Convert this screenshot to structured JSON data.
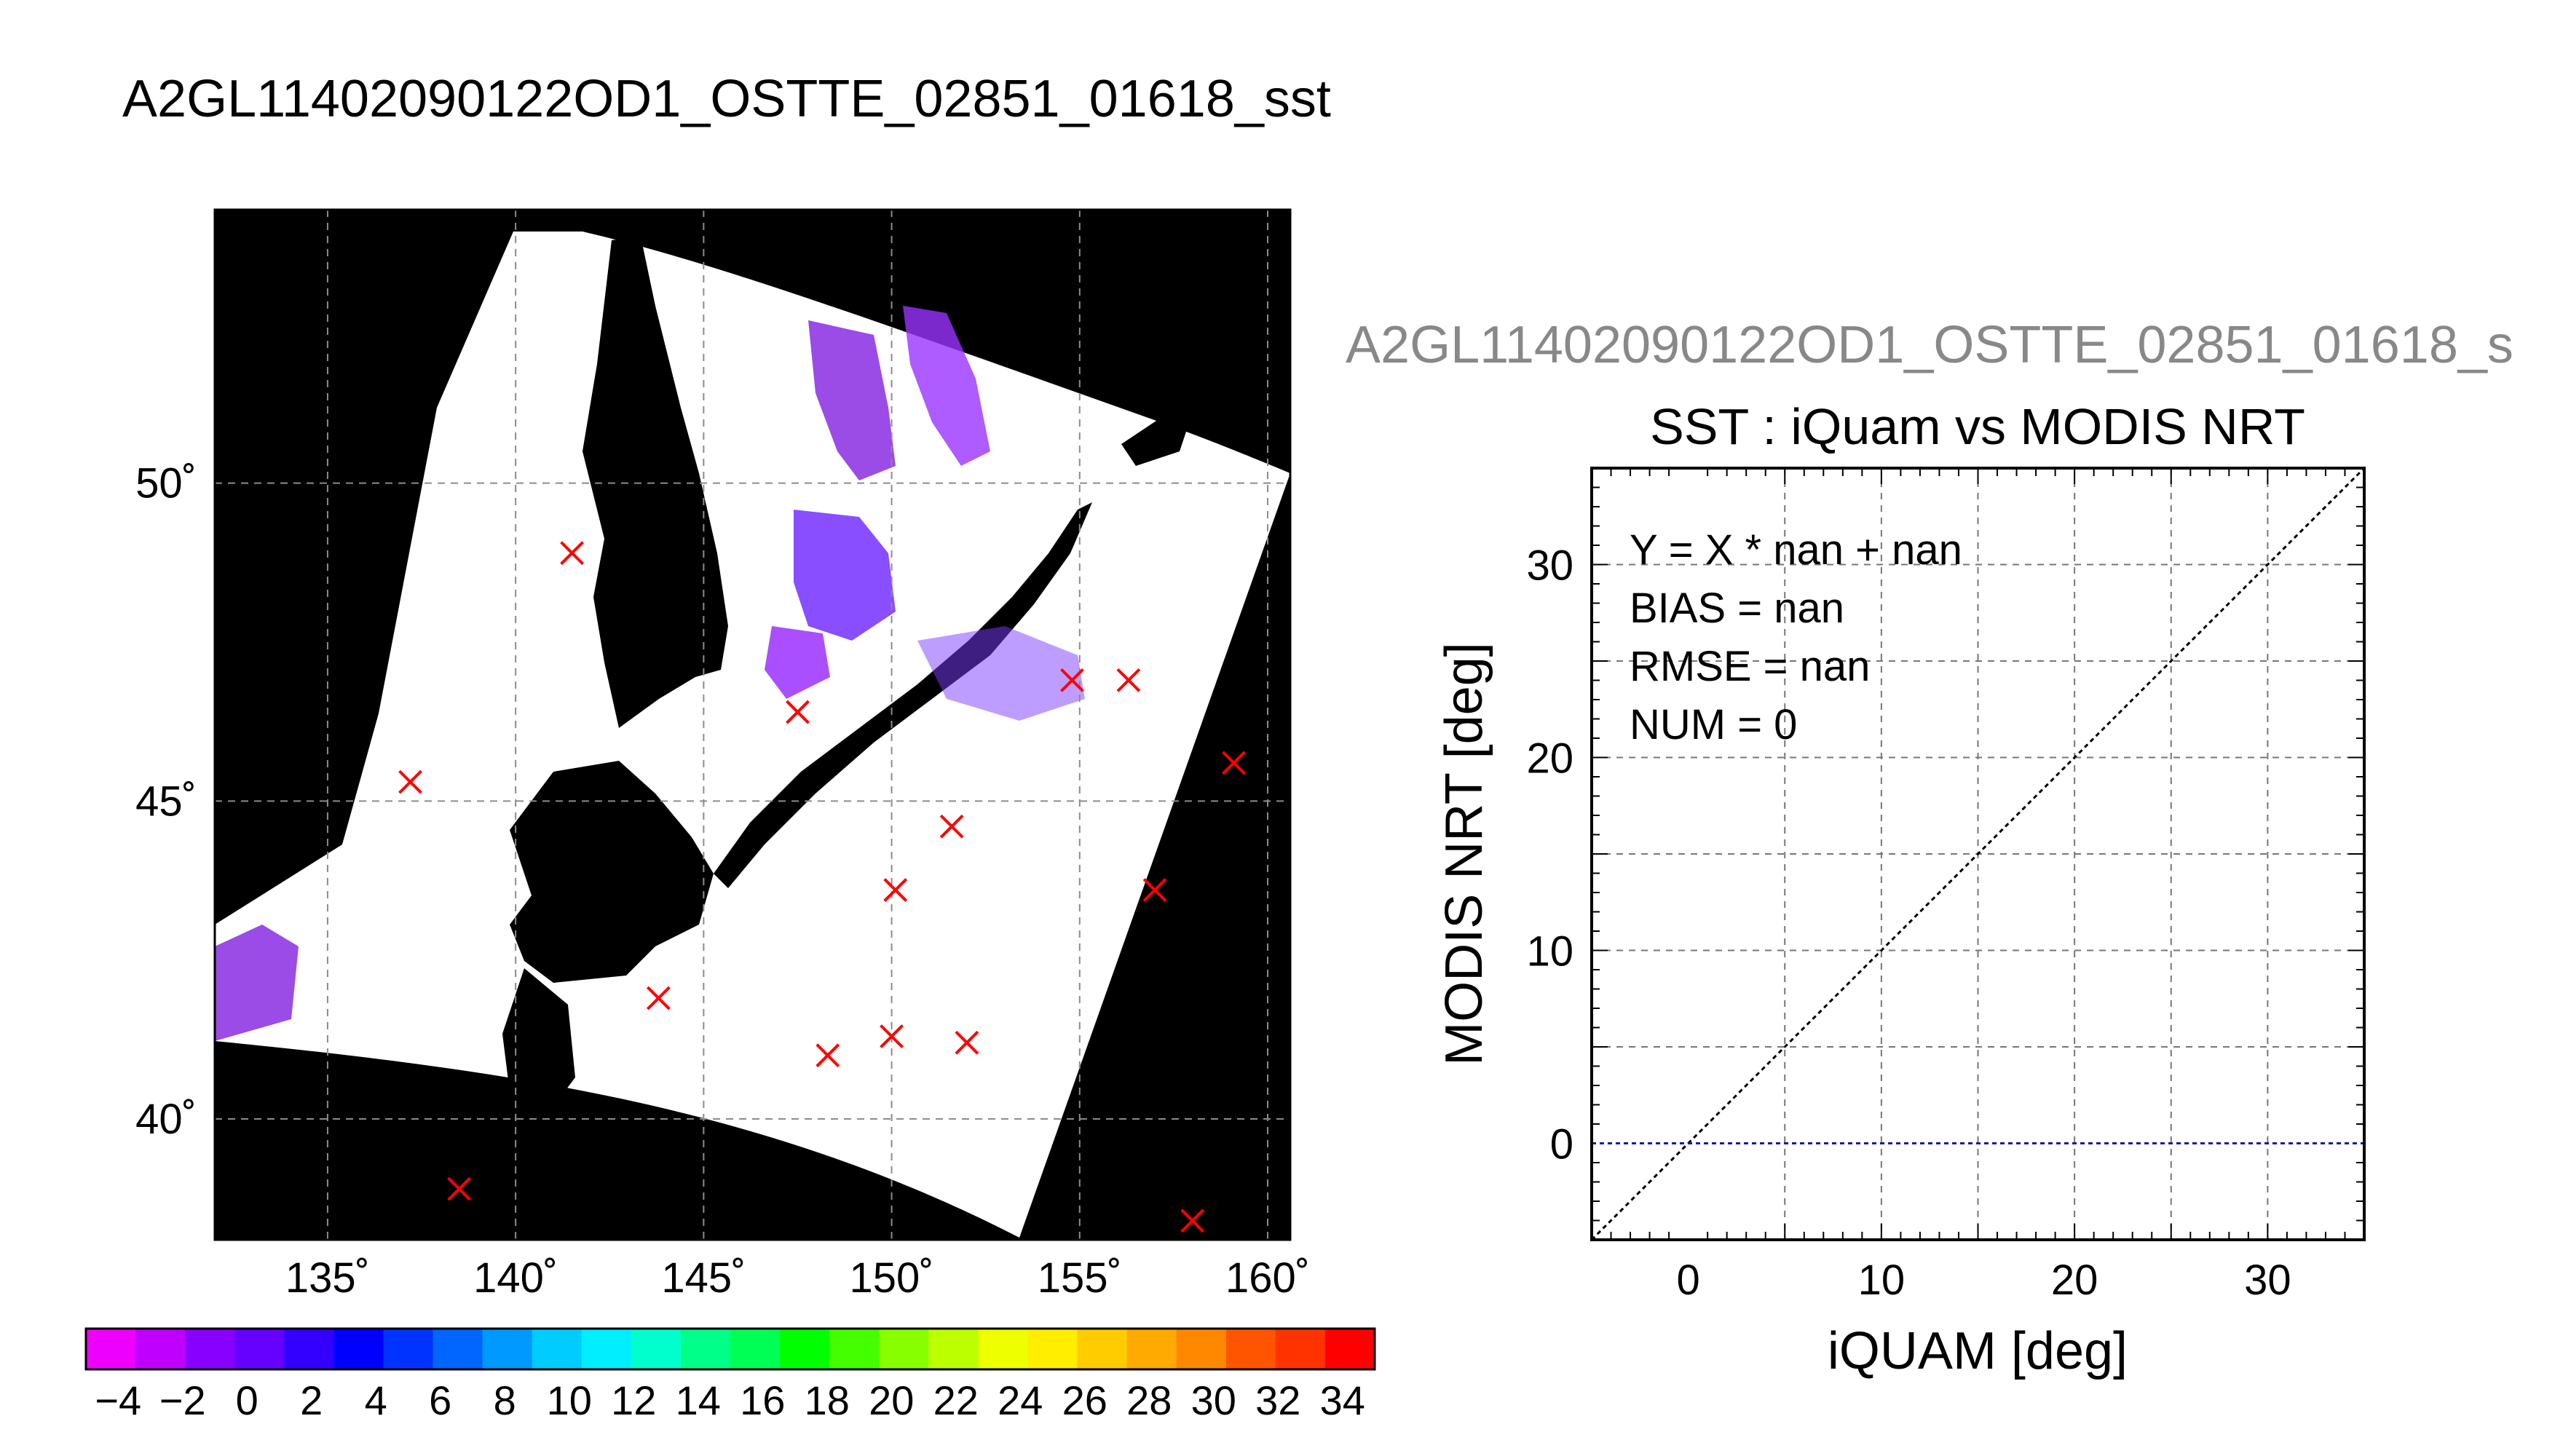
{
  "figure_title": "A2GL11402090122OD1_OSTTE_02851_01618_sst",
  "overlay_title": "A2GL11402090122OD1_OSTTE_02851_01618_s",
  "colors": {
    "map_land": "#000000",
    "map_swath": "#ffffff",
    "marker": "#ff0000",
    "cold_sst": "#8a2be2",
    "one_to_one_line": "#000000",
    "fit_line": "#1a1aa6",
    "title_gray": "#888888"
  },
  "chart_data": [
    {
      "type": "scatter",
      "subtype": "sst-map",
      "lon_ticks": [
        "135˚",
        "140˚",
        "145˚",
        "150˚",
        "155˚",
        "160˚"
      ],
      "lat_ticks": [
        "40˚",
        "45˚",
        "50˚"
      ],
      "lon_values": [
        135,
        140,
        145,
        150,
        155,
        160
      ],
      "lat_values": [
        40,
        45,
        50
      ],
      "xlim": [
        132,
        160.6
      ],
      "ylim": [
        38.1,
        54.3
      ],
      "grid": true,
      "markers": [
        {
          "lon": 141.5,
          "lat": 48.9
        },
        {
          "lon": 137.2,
          "lat": 45.3
        },
        {
          "lon": 147.5,
          "lat": 46.4
        },
        {
          "lon": 154.8,
          "lat": 46.9
        },
        {
          "lon": 156.3,
          "lat": 46.9
        },
        {
          "lon": 159.1,
          "lat": 45.6
        },
        {
          "lon": 151.6,
          "lat": 44.6
        },
        {
          "lon": 150.1,
          "lat": 43.6
        },
        {
          "lon": 157.0,
          "lat": 43.6
        },
        {
          "lon": 143.8,
          "lat": 41.9
        },
        {
          "lon": 148.3,
          "lat": 41.0
        },
        {
          "lon": 150.0,
          "lat": 41.3
        },
        {
          "lon": 152.0,
          "lat": 41.2
        },
        {
          "lon": 138.5,
          "lat": 38.9
        },
        {
          "lon": 158.0,
          "lat": 38.4
        }
      ]
    },
    {
      "type": "heatmap",
      "subtype": "colorbar",
      "tick_labels": [
        "−4",
        "−2",
        "0",
        "2",
        "4",
        "6",
        "8",
        "10",
        "12",
        "14",
        "16",
        "18",
        "20",
        "22",
        "24",
        "26",
        "28",
        "30",
        "32",
        "34"
      ],
      "tick_values": [
        -4,
        -2,
        0,
        2,
        4,
        6,
        8,
        10,
        12,
        14,
        16,
        18,
        20,
        22,
        24,
        26,
        28,
        30,
        32,
        34
      ],
      "range": [
        -5,
        35
      ],
      "colors": [
        "#ee00ff",
        "#c000ff",
        "#8800ff",
        "#6600ff",
        "#3300ff",
        "#0000ff",
        "#0033ff",
        "#0066ff",
        "#0099ff",
        "#00ccff",
        "#00eeff",
        "#00ffcc",
        "#00ff88",
        "#00ff55",
        "#00ff00",
        "#44ff00",
        "#88ff00",
        "#bbff00",
        "#eeff00",
        "#ffee00",
        "#ffcc00",
        "#ffaa00",
        "#ff8800",
        "#ff5500",
        "#ff3300",
        "#ff0000"
      ]
    },
    {
      "type": "scatter",
      "title": "SST : iQuam vs MODIS NRT",
      "xlabel": "iQUAM [deg]",
      "ylabel": "MODIS NRT [deg]",
      "xlim": [
        -5,
        35
      ],
      "ylim": [
        -5,
        35
      ],
      "x_ticks": [
        0,
        10,
        20,
        30
      ],
      "y_ticks": [
        0,
        10,
        20,
        30
      ],
      "grid": true,
      "annotations": [
        "Y = X * nan + nan",
        "BIAS = nan",
        "RMSE = nan",
        "NUM = 0"
      ],
      "lines": [
        {
          "x": [
            -5,
            35
          ],
          "y": [
            -5,
            35
          ]
        },
        {
          "x": [
            -5,
            35
          ],
          "y": [
            0,
            0
          ]
        }
      ],
      "points": []
    }
  ]
}
